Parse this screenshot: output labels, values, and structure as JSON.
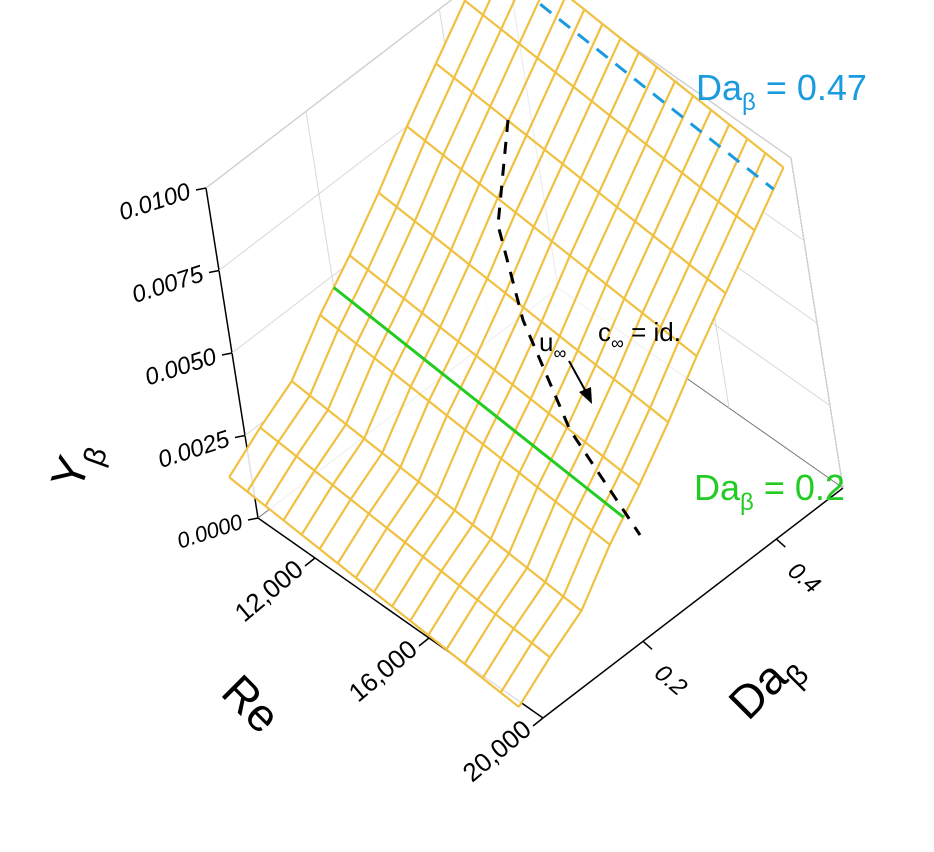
{
  "chart_data": {
    "type": "surface3d",
    "x_axis": {
      "label": "Re",
      "ticks": [
        "12,000",
        "16,000",
        "20,000"
      ],
      "tick_values": [
        12000,
        16000,
        20000
      ],
      "range": [
        10000,
        20000
      ]
    },
    "y_axis": {
      "label_main": "Da",
      "label_sub": "β",
      "ticks": [
        "0.2",
        "0.4"
      ],
      "tick_values": [
        0.2,
        0.4
      ],
      "range": [
        0.05,
        0.5
      ]
    },
    "z_axis": {
      "label_main": "Y",
      "label_sub": "β",
      "ticks": [
        "0.0000",
        "0.0025",
        "0.0050",
        "0.0075",
        "0.0100"
      ],
      "tick_values": [
        0.0,
        0.0025,
        0.005,
        0.0075,
        0.01
      ],
      "range": [
        0,
        0.01
      ]
    },
    "surface": {
      "color": "#f0c040",
      "re": [
        10000,
        10625,
        11250,
        11875,
        12500,
        13125,
        13750,
        14375,
        15000,
        15625,
        16250,
        16875,
        17500,
        18125,
        18750,
        19375,
        20000
      ],
      "da": [
        0.02,
        0.072,
        0.124,
        0.176,
        0.228,
        0.28,
        0.332,
        0.384,
        0.436,
        0.488
      ],
      "z_at_re_min": [
        0.0017,
        0.0024,
        0.003,
        0.0042,
        0.0052,
        0.0063,
        0.0075,
        0.0086,
        0.0097,
        0.0108
      ],
      "z_drop_at_re_max": 0.0009
    },
    "annotations": [
      {
        "main": "Da",
        "sub": "β",
        "value": " = 0.47",
        "color": "#1a9be0",
        "line_style": "dashed",
        "da": 0.47
      },
      {
        "main": "Da",
        "sub": "β",
        "value": " = 0.2",
        "color": "#22cc22",
        "line_style": "solid",
        "da": 0.2
      },
      {
        "main": "u",
        "sub": "∞",
        "color": "#000000"
      },
      {
        "main": "c",
        "sub": "∞",
        "value": " = id.",
        "color": "#000000"
      }
    ],
    "grid": true
  }
}
